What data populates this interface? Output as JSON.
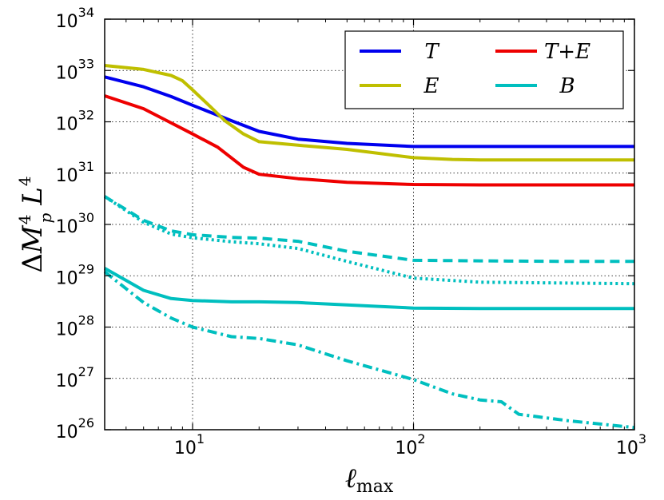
{
  "chart_data": {
    "type": "line",
    "xscale": "log",
    "yscale": "log",
    "xlim": [
      4,
      1000
    ],
    "ylim": [
      1e+26,
      1e+34
    ],
    "grid": true,
    "legend_position": "top-right",
    "xlabel_base": "ℓ",
    "xlabel_sub": "max",
    "ylabel_parts": [
      "Δ",
      "M",
      "4",
      "p",
      "L",
      "4"
    ],
    "x_ticks": [
      {
        "value": 10,
        "base": "10",
        "exp": "1"
      },
      {
        "value": 100,
        "base": "10",
        "exp": "2"
      },
      {
        "value": 1000,
        "base": "10",
        "exp": "3"
      }
    ],
    "y_ticks": [
      {
        "value": 1e+26,
        "base": "10",
        "exp": "26"
      },
      {
        "value": 1e+27,
        "base": "10",
        "exp": "27"
      },
      {
        "value": 1e+28,
        "base": "10",
        "exp": "28"
      },
      {
        "value": 1e+29,
        "base": "10",
        "exp": "29"
      },
      {
        "value": 1e+30,
        "base": "10",
        "exp": "30"
      },
      {
        "value": 1e+31,
        "base": "10",
        "exp": "31"
      },
      {
        "value": 1e+32,
        "base": "10",
        "exp": "32"
      },
      {
        "value": 1e+33,
        "base": "10",
        "exp": "33"
      },
      {
        "value": 1e+34,
        "base": "10",
        "exp": "34"
      }
    ],
    "series": [
      {
        "name": "T",
        "color": "#0000ee",
        "style": "solid",
        "in_legend": true,
        "x": [
          4,
          6,
          8,
          10,
          15,
          20,
          30,
          50,
          100,
          200,
          500,
          1000
        ],
        "y": [
          7.5e+32,
          4.8e+32,
          3.1e+32,
          2.1e+32,
          1.05e+32,
          6.5e+31,
          4.6e+31,
          3.8e+31,
          3.3e+31,
          3.3e+31,
          3.3e+31,
          3.3e+31
        ]
      },
      {
        "name": "E",
        "color": "#bfbf00",
        "style": "solid",
        "in_legend": true,
        "x": [
          4,
          6,
          8,
          9,
          10,
          12,
          14,
          17,
          20,
          30,
          50,
          100,
          150,
          200,
          500,
          1000
        ],
        "y": [
          1.25e+33,
          1.05e+33,
          8e+32,
          6.3e+32,
          4.2e+32,
          2e+32,
          1.05e+32,
          5.8e+31,
          4.1e+31,
          3.5e+31,
          2.9e+31,
          2e+31,
          1.85e+31,
          1.8e+31,
          1.8e+31,
          1.8e+31
        ]
      },
      {
        "name": "T+E",
        "color": "#ee0000",
        "style": "solid",
        "in_legend": true,
        "x": [
          4,
          6,
          8,
          10,
          13,
          17,
          20,
          30,
          50,
          100,
          200,
          500,
          1000
        ],
        "y": [
          3.2e+32,
          1.8e+32,
          9.5e+31,
          5.8e+31,
          3.2e+31,
          1.3e+31,
          9.5e+30,
          7.8e+30,
          6.6e+30,
          6e+30,
          5.9e+30,
          5.9e+30,
          5.9e+30
        ]
      },
      {
        "name": "B",
        "color": "#00bfbf",
        "style": "solid",
        "in_legend": true,
        "x": [
          4,
          6,
          8,
          10,
          15,
          20,
          30,
          50,
          100,
          200,
          500,
          1000
        ],
        "y": [
          1.4e+29,
          5.2e+28,
          3.6e+28,
          3.3e+28,
          3.1e+28,
          3.1e+28,
          3e+28,
          2.7e+28,
          2.35e+28,
          2.3e+28,
          2.3e+28,
          2.3e+28
        ]
      },
      {
        "name": "B (dashed)",
        "color": "#00bfbf",
        "style": "dashed",
        "in_legend": false,
        "x": [
          4,
          6,
          8,
          10,
          15,
          20,
          30,
          50,
          100,
          200,
          500,
          1000
        ],
        "y": [
          3.5e+30,
          1.2e+30,
          7.5e+29,
          6.3e+29,
          5.6e+29,
          5.4e+29,
          4.7e+29,
          3e+29,
          2e+29,
          1.95e+29,
          1.9e+29,
          1.9e+29
        ]
      },
      {
        "name": "B (dotted)",
        "color": "#00bfbf",
        "style": "dotted",
        "in_legend": false,
        "x": [
          4,
          6,
          8,
          10,
          15,
          20,
          30,
          50,
          100,
          200,
          500,
          1000
        ],
        "y": [
          3.5e+30,
          1.1e+30,
          6.5e+29,
          5.5e+29,
          4.6e+29,
          4.2e+29,
          3.4e+29,
          1.9e+29,
          9e+28,
          7.5e+28,
          7.2e+28,
          7e+28
        ]
      },
      {
        "name": "B (dash-dot)",
        "color": "#00bfbf",
        "style": "dashdot",
        "in_legend": false,
        "x": [
          4,
          6,
          8,
          10,
          15,
          20,
          30,
          50,
          100,
          150,
          200,
          250,
          300,
          500,
          1000
        ],
        "y": [
          1.2e+29,
          3e+28,
          1.5e+28,
          1e+28,
          6.5e+27,
          6e+27,
          4.5e+27,
          2.2e+27,
          9.5e+26,
          5e+26,
          3.8e+26,
          3.5e+26,
          2e+26,
          1.5e+26,
          1.1e+26
        ]
      }
    ]
  }
}
